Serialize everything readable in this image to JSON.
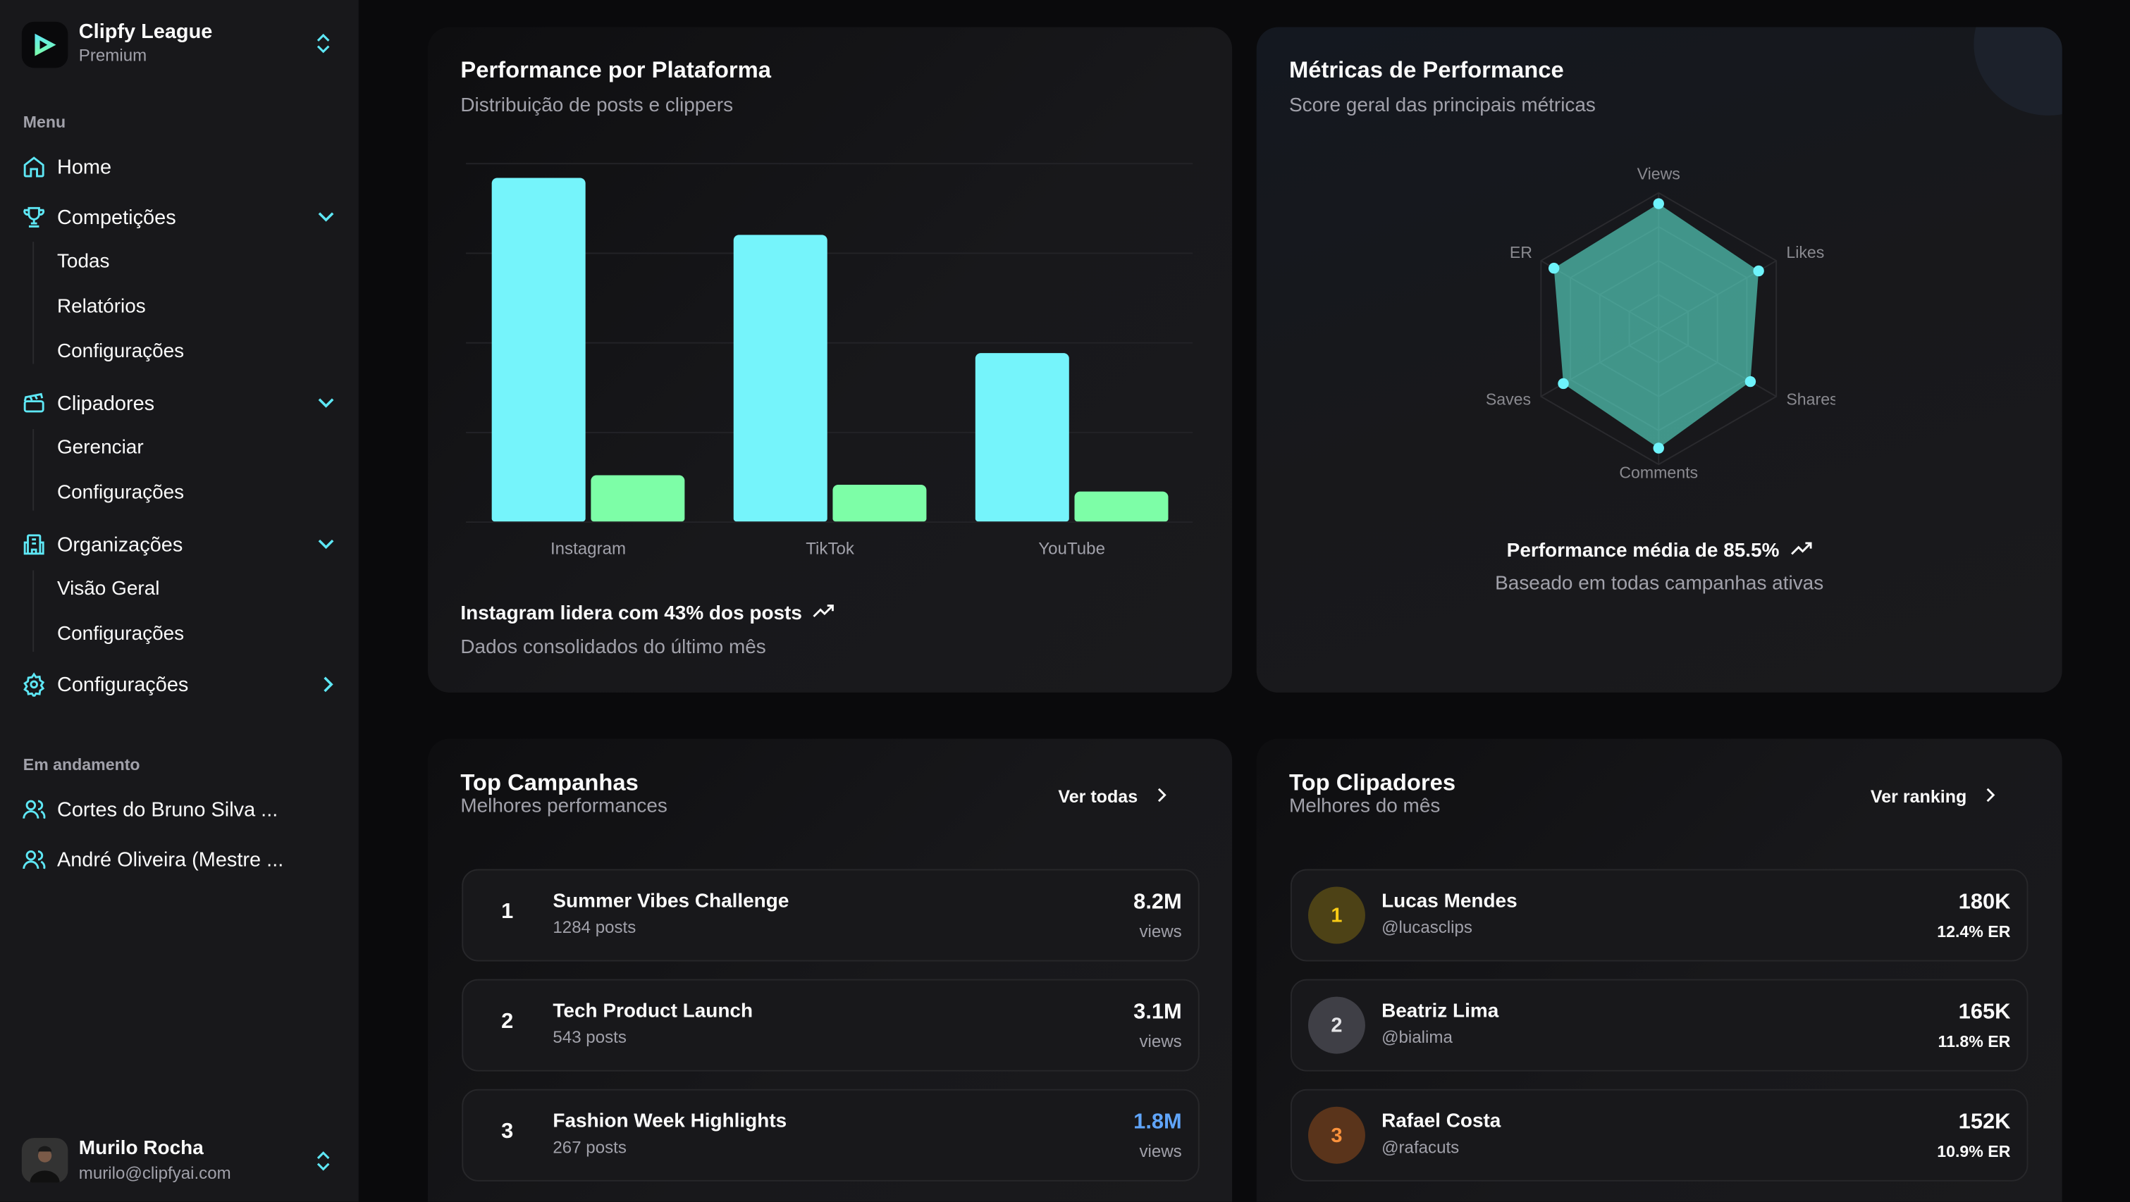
{
  "sidebar": {
    "brand": "Clipfy League",
    "plan": "Premium",
    "menu_label": "Menu",
    "home": "Home",
    "competicoes": {
      "label": "Competições",
      "children": [
        "Todas",
        "Relatórios",
        "Configurações"
      ]
    },
    "clipadores": {
      "label": "Clipadores",
      "children": [
        "Gerenciar",
        "Configurações"
      ]
    },
    "organizacoes": {
      "label": "Organizações",
      "children": [
        "Visão Geral",
        "Configurações"
      ]
    },
    "configuracoes": "Configurações",
    "in_progress_label": "Em andamento",
    "in_progress": [
      "Cortes do Bruno Silva ...",
      "André Oliveira (Mestre ..."
    ],
    "user": {
      "name": "Murilo Rocha",
      "email": "murilo@clipfyai.com"
    }
  },
  "platform_card": {
    "title": "Performance por Plataforma",
    "subtitle": "Distribuição de posts e clippers",
    "footer_title": "Instagram lidera com 43% dos posts",
    "footer_sub": "Dados consolidados do último mês"
  },
  "metrics_card": {
    "title": "Métricas de Performance",
    "subtitle": "Score geral das principais métricas",
    "footer_title": "Performance média de 85.5%",
    "footer_sub": "Baseado em todas campanhas ativas"
  },
  "chart_data": [
    {
      "type": "bar",
      "title": "Performance por Plataforma",
      "categories": [
        "Instagram",
        "TikTok",
        "YouTube"
      ],
      "series": [
        {
          "name": "posts",
          "color": "#75f4fb",
          "values": [
            96,
            80,
            47
          ]
        },
        {
          "name": "clippers",
          "color": "#7dfea7",
          "values": [
            13,
            10.3,
            8.4
          ]
        }
      ],
      "ylim": [
        0,
        100
      ],
      "grid": true
    },
    {
      "type": "radar",
      "title": "Métricas de Performance",
      "axes": [
        "Views",
        "Likes",
        "Shares",
        "Comments",
        "Saves",
        "ER"
      ],
      "values": [
        92,
        85,
        78,
        88,
        81,
        89
      ],
      "range": [
        0,
        100
      ],
      "color": "#5eead4"
    }
  ],
  "campaigns": {
    "title": "Top Campanhas",
    "subtitle": "Melhores performances",
    "link": "Ver todas",
    "items": [
      {
        "rank": "1",
        "name": "Summer Vibes Challenge",
        "posts": "1284 posts",
        "value": "8.2M",
        "unit": "views",
        "color": "#fafafa"
      },
      {
        "rank": "2",
        "name": "Tech Product Launch",
        "posts": "543 posts",
        "value": "3.1M",
        "unit": "views",
        "color": "#fafafa"
      },
      {
        "rank": "3",
        "name": "Fashion Week Highlights",
        "posts": "267 posts",
        "value": "1.8M",
        "unit": "views",
        "color": "#60a5fa"
      }
    ]
  },
  "clippers": {
    "title": "Top Clipadores",
    "subtitle": "Melhores do mês",
    "link": "Ver ranking",
    "items": [
      {
        "rank": "1",
        "name": "Lucas Mendes",
        "handle": "@lucasclips",
        "value": "180K",
        "er": "12.4% ER",
        "bg": "#4d4216",
        "fg": "#facc15"
      },
      {
        "rank": "2",
        "name": "Beatriz Lima",
        "handle": "@bialima",
        "value": "165K",
        "er": "11.8% ER",
        "bg": "#3f3f46",
        "fg": "#e4e4e7"
      },
      {
        "rank": "3",
        "name": "Rafael Costa",
        "handle": "@rafacuts",
        "value": "152K",
        "er": "10.9% ER",
        "bg": "#5a341b",
        "fg": "#fb923c"
      }
    ]
  }
}
